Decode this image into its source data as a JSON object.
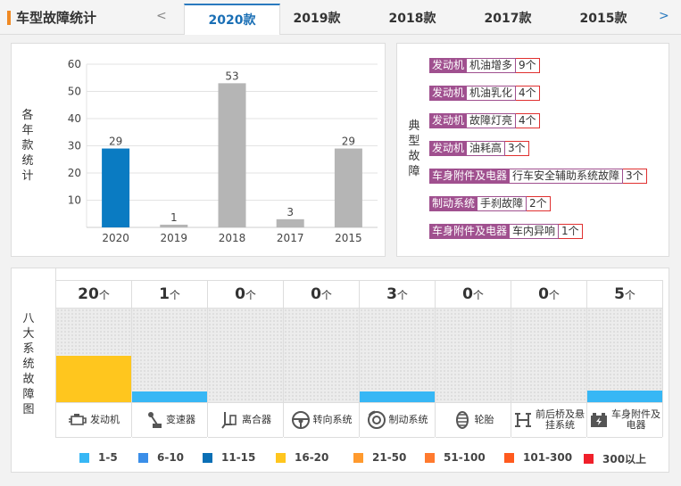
{
  "header": {
    "title": "车型故障统计",
    "prev": "<",
    "next": ">",
    "tabs": [
      "2020款",
      "2019款",
      "2018款",
      "2017款",
      "2015款"
    ],
    "active_tab": 0
  },
  "chart_side_label": "各年款统计",
  "chart_data": {
    "type": "bar",
    "categories": [
      "2020",
      "2019",
      "2018",
      "2017",
      "2015"
    ],
    "values": [
      29,
      1,
      53,
      3,
      29
    ],
    "ylim": [
      0,
      60
    ],
    "yticks": [
      10,
      20,
      30,
      40,
      50,
      60
    ],
    "highlight_index": 0,
    "colors": {
      "highlight": "#0a7bc2",
      "default": "#b5b5b5"
    },
    "grid": true
  },
  "faults_label": "典型故障",
  "faults": [
    {
      "category": "发动机",
      "name": "机油增多",
      "count": "9个"
    },
    {
      "category": "发动机",
      "name": "机油乳化",
      "count": "4个"
    },
    {
      "category": "发动机",
      "name": "故障灯亮",
      "count": "4个"
    },
    {
      "category": "发动机",
      "name": "油耗高",
      "count": "3个"
    },
    {
      "category": "车身附件及电器",
      "name": "行车安全辅助系统故障",
      "count": "3个"
    },
    {
      "category": "制动系统",
      "name": "手刹故障",
      "count": "2个"
    },
    {
      "category": "车身附件及电器",
      "name": "车内异响",
      "count": "1个"
    }
  ],
  "systems_label": "八大系统故障图",
  "unit": "个",
  "systems": [
    {
      "name": "发动机",
      "icon": "engine-icon",
      "count": 20,
      "color": "#ffc61e"
    },
    {
      "name": "变速器",
      "icon": "gear-shift-icon",
      "count": 1,
      "color": "#37b7f5"
    },
    {
      "name": "离合器",
      "icon": "clutch-icon",
      "count": 0,
      "color": "#37b7f5"
    },
    {
      "name": "转向系统",
      "icon": "steering-wheel-icon",
      "count": 0,
      "color": "#37b7f5"
    },
    {
      "name": "制动系统",
      "icon": "brake-disc-icon",
      "count": 3,
      "color": "#37b7f5"
    },
    {
      "name": "轮胎",
      "icon": "tire-icon",
      "count": 0,
      "color": "#37b7f5"
    },
    {
      "name": "前后桥及悬挂系统",
      "icon": "suspension-icon",
      "count": 0,
      "color": "#37b7f5"
    },
    {
      "name": "车身附件及电器",
      "icon": "battery-icon",
      "count": 5,
      "color": "#37b7f5"
    }
  ],
  "legend": [
    {
      "label": "1-5",
      "color": "#37b7f5"
    },
    {
      "label": "6-10",
      "color": "#3a8ee8"
    },
    {
      "label": "11-15",
      "color": "#0a6fb5"
    },
    {
      "label": "16-20",
      "color": "#ffc61e"
    },
    {
      "label": "21-50",
      "color": "#ff9a2e"
    },
    {
      "label": "51-100",
      "color": "#ff7a2e"
    },
    {
      "label": "101-300",
      "color": "#ff5a1e"
    },
    {
      "label": "300以上",
      "color": "#f0202a"
    }
  ]
}
